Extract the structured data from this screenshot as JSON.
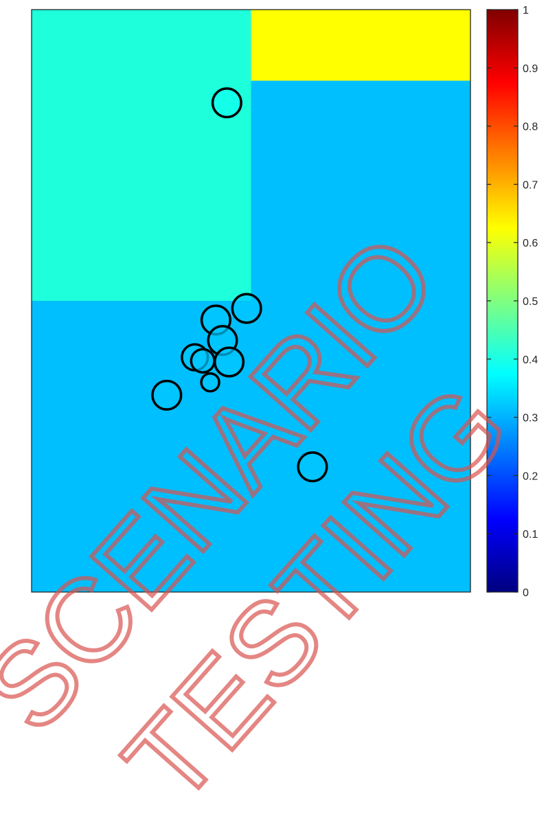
{
  "chart_data": {
    "type": "heatmap",
    "title": "",
    "xlabel": "",
    "ylabel": "",
    "xlim": [
      0,
      1
    ],
    "ylim": [
      0,
      1
    ],
    "axis_ticks": false,
    "regions": [
      {
        "x": [
          0,
          1
        ],
        "y": [
          0,
          0.5
        ],
        "value": 0.32,
        "color": "#00bfff"
      },
      {
        "x": [
          0,
          0.5
        ],
        "y": [
          0.5,
          1
        ],
        "value": 0.41,
        "color": "#1effdc"
      },
      {
        "x": [
          0.5,
          1
        ],
        "y": [
          0.5,
          0.878
        ],
        "value": 0.32,
        "color": "#00bfff"
      },
      {
        "x": [
          0.5,
          1
        ],
        "y": [
          0.878,
          1
        ],
        "value": 0.62,
        "color": "#ffff00"
      }
    ],
    "points": [
      {
        "x": 0.445,
        "y": 0.84,
        "value": 0.39,
        "r": 1.6
      },
      {
        "x": 0.49,
        "y": 0.487,
        "value": 0.32,
        "r": 1.6
      },
      {
        "x": 0.42,
        "y": 0.467,
        "value": 0.32,
        "r": 1.6
      },
      {
        "x": 0.435,
        "y": 0.432,
        "value": 0.32,
        "r": 1.6
      },
      {
        "x": 0.372,
        "y": 0.403,
        "value": 0.32,
        "r": 1.45
      },
      {
        "x": 0.39,
        "y": 0.397,
        "value": 0.32,
        "r": 1.3
      },
      {
        "x": 0.45,
        "y": 0.395,
        "value": 0.32,
        "r": 1.6
      },
      {
        "x": 0.407,
        "y": 0.36,
        "value": 0.32,
        "r": 1.0
      },
      {
        "x": 0.308,
        "y": 0.338,
        "value": 0.32,
        "r": 1.6
      },
      {
        "x": 0.64,
        "y": 0.215,
        "value": 0.32,
        "r": 1.6
      }
    ],
    "colorbar": {
      "colormap": "jet",
      "min": 0,
      "max": 1,
      "ticks": [
        "0",
        "0.1",
        "0.2",
        "0.3",
        "0.4",
        "0.5",
        "0.6",
        "0.7",
        "0.8",
        "0.9",
        "1"
      ]
    },
    "grid": false,
    "legend": "none"
  },
  "watermark": {
    "line1": "SCENARIO",
    "line2": "TESTING",
    "color": "#d9534f"
  }
}
